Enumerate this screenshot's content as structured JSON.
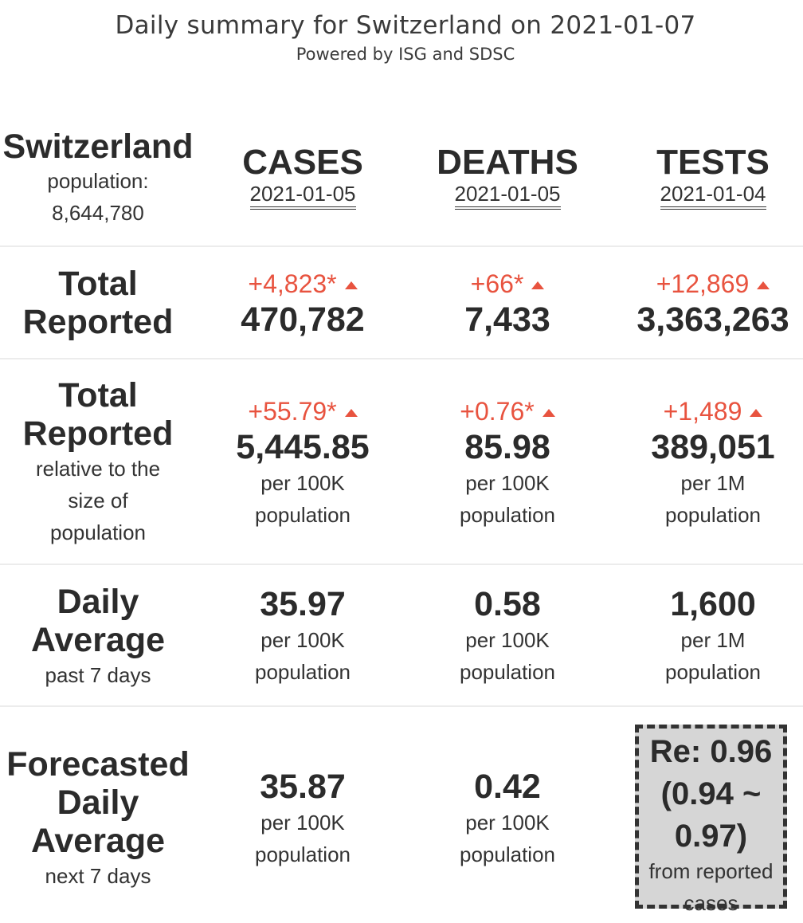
{
  "header": {
    "title": "Daily summary for Switzerland on 2021-01-07",
    "subtitle": "Powered by ISG and SDSC"
  },
  "country": {
    "name": "Switzerland",
    "population_label": "population:",
    "population_value": "8,644,780"
  },
  "columns": [
    {
      "name": "CASES",
      "date": "2021-01-05"
    },
    {
      "name": "DEATHS",
      "date": "2021-01-05"
    },
    {
      "name": "TESTS",
      "date": "2021-01-04"
    }
  ],
  "rows": {
    "total": {
      "label_line1": "Total",
      "label_line2": "Reported",
      "cells": [
        {
          "delta": "+4,823*",
          "value": "470,782"
        },
        {
          "delta": "+66*",
          "value": "7,433"
        },
        {
          "delta": "+12,869",
          "value": "3,363,263"
        }
      ]
    },
    "relative": {
      "label_line1": "Total",
      "label_line2": "Reported",
      "sub1": "relative to the",
      "sub2": "size of",
      "sub3": "population",
      "cells": [
        {
          "delta": "+55.79*",
          "value": "5,445.85",
          "unit1": "per 100K",
          "unit2": "population"
        },
        {
          "delta": "+0.76*",
          "value": "85.98",
          "unit1": "per 100K",
          "unit2": "population"
        },
        {
          "delta": "+1,489",
          "value": "389,051",
          "unit1": "per 1M",
          "unit2": "population"
        }
      ]
    },
    "daily": {
      "label_line1": "Daily",
      "label_line2": "Average",
      "sub1": "past 7 days",
      "cells": [
        {
          "value": "35.97",
          "unit1": "per 100K",
          "unit2": "population"
        },
        {
          "value": "0.58",
          "unit1": "per 100K",
          "unit2": "population"
        },
        {
          "value": "1,600",
          "unit1": "per 1M",
          "unit2": "population"
        }
      ]
    },
    "forecast": {
      "label_line1": "Forecasted",
      "label_line2": "Daily",
      "label_line3": "Average",
      "sub1": "next 7 days",
      "cells": [
        {
          "value": "35.87",
          "unit1": "per 100K",
          "unit2": "population"
        },
        {
          "value": "0.42",
          "unit1": "per 100K",
          "unit2": "population"
        }
      ],
      "re": {
        "line1": "Re: 0.96",
        "line2": "(0.94 ~",
        "line3": "0.97)",
        "note1": "from reported",
        "note2": "cases"
      }
    }
  },
  "colors": {
    "increase": "#e8533f",
    "text": "#333333",
    "re_box_bg": "#d6d6d6"
  },
  "icons": {
    "increase": "triangle-up-icon"
  }
}
